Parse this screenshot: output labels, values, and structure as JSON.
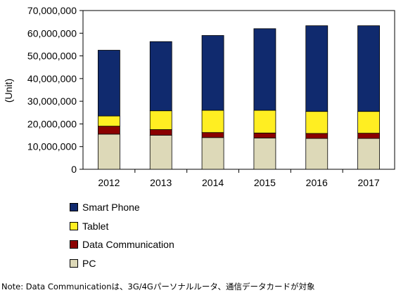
{
  "chart_data": {
    "type": "bar",
    "stacked": true,
    "categories": [
      "2012",
      "2013",
      "2014",
      "2015",
      "2016",
      "2017"
    ],
    "series": [
      {
        "name": "PC",
        "color": "#ddd9b8",
        "values": [
          15500000,
          15000000,
          14000000,
          13800000,
          13600000,
          13600000
        ]
      },
      {
        "name": "Data Communication",
        "color": "#8b0000",
        "values": [
          3500000,
          2500000,
          2200000,
          2200000,
          2200000,
          2300000
        ]
      },
      {
        "name": "Tablet",
        "color": "#ffee22",
        "values": [
          4500000,
          8300000,
          9800000,
          10000000,
          9700000,
          9600000
        ]
      },
      {
        "name": "Smart Phone",
        "color": "#102a6e",
        "values": [
          29000000,
          30500000,
          33000000,
          36000000,
          37800000,
          37800000
        ]
      }
    ],
    "ylabel": "(Unit)",
    "ylim": [
      0,
      70000000
    ],
    "yticks": [
      "0",
      "10,000,000",
      "20,000,000",
      "30,000,000",
      "40,000,000",
      "50,000,000",
      "60,000,000",
      "70,000,000"
    ],
    "legend": [
      "Smart Phone",
      "Tablet",
      "Data Communication",
      "PC"
    ],
    "legend_position": "bottom-left",
    "grid": false
  },
  "note": "Note: Data Communicationは、3G/4Gパーソナルルータ、通信データカードが対象"
}
